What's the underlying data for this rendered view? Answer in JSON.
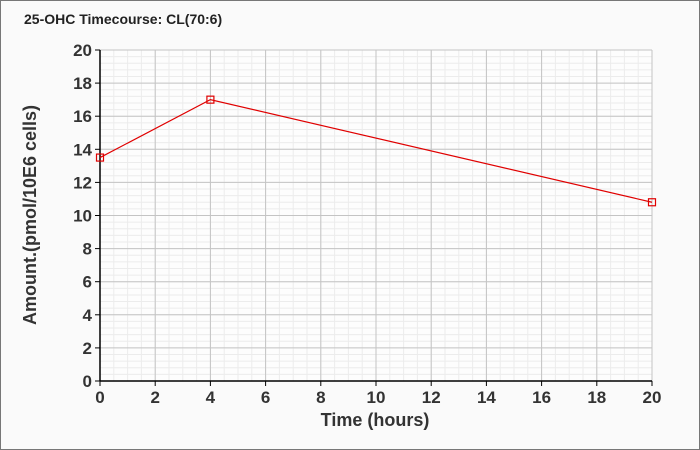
{
  "chart_data": {
    "type": "line",
    "title": "25-OHC Timecourse: CL(70:6)",
    "xlabel": "Time (hours)",
    "ylabel": "Amount.(pmol/10E6 cells)",
    "xlim": [
      0,
      20
    ],
    "ylim": [
      0,
      20
    ],
    "xticks": [
      0,
      2,
      4,
      6,
      8,
      10,
      12,
      14,
      16,
      18,
      20
    ],
    "yticks": [
      0,
      2,
      4,
      6,
      8,
      10,
      12,
      14,
      16,
      18,
      20
    ],
    "grid": true,
    "legend": "none",
    "series": [
      {
        "x": [
          0,
          4,
          20
        ],
        "y": [
          13.5,
          17.0,
          10.8
        ],
        "color": "#e00000",
        "marker": "open-square"
      }
    ]
  }
}
